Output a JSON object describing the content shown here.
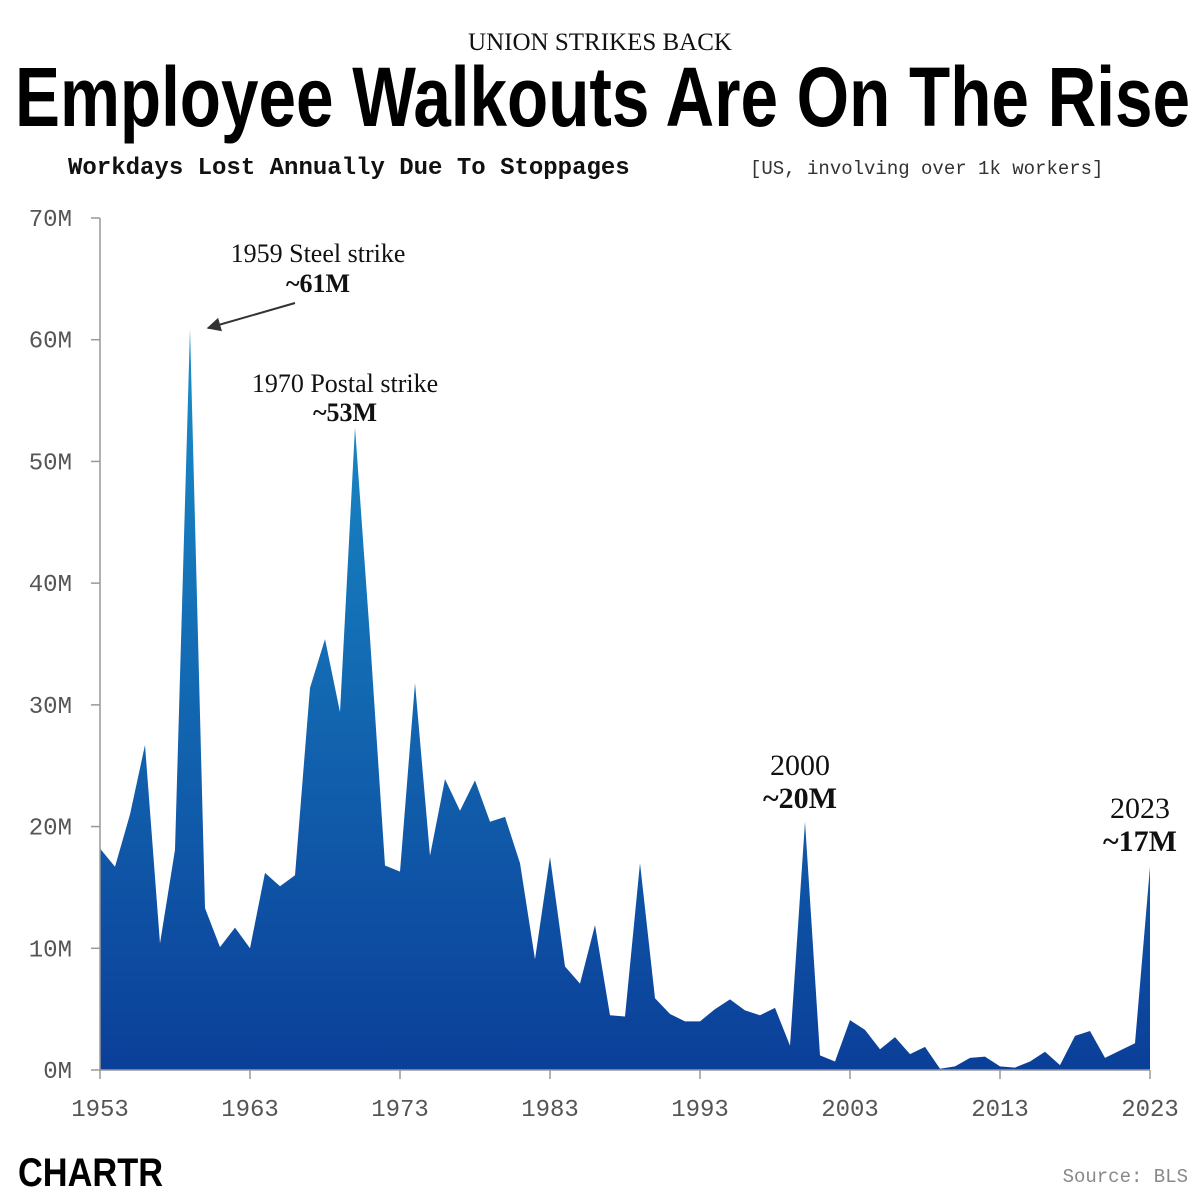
{
  "chart_data": {
    "type": "area",
    "kicker": "UNION STRIKES BACK",
    "title": "Employee Walkouts Are On The Rise",
    "subtitle": "Workdays Lost Annually Due To Stoppages",
    "subtitle_note": "[US, involving over 1k workers]",
    "source": "Source: BLS",
    "brand": "CHARTR",
    "x": [
      1953,
      1954,
      1955,
      1956,
      1957,
      1958,
      1959,
      1960,
      1961,
      1962,
      1963,
      1964,
      1965,
      1966,
      1967,
      1968,
      1969,
      1970,
      1971,
      1972,
      1973,
      1974,
      1975,
      1976,
      1977,
      1978,
      1979,
      1980,
      1981,
      1982,
      1983,
      1984,
      1985,
      1986,
      1987,
      1988,
      1989,
      1990,
      1991,
      1992,
      1993,
      1994,
      1995,
      1996,
      1997,
      1998,
      1999,
      2000,
      2001,
      2002,
      2003,
      2004,
      2005,
      2006,
      2007,
      2008,
      2009,
      2010,
      2011,
      2012,
      2013,
      2014,
      2015,
      2016,
      2017,
      2018,
      2019,
      2020,
      2021,
      2022,
      2023
    ],
    "values": [
      18.2,
      16.7,
      21,
      26.7,
      10.4,
      18.1,
      60.9,
      13.3,
      10.1,
      11.7,
      10.0,
      16.2,
      15.1,
      16.0,
      31.4,
      35.4,
      29.4,
      52.8,
      35.5,
      16.8,
      16.3,
      31.8,
      17.6,
      23.9,
      21.3,
      23.8,
      20.4,
      20.8,
      17.0,
      9.1,
      17.5,
      8.5,
      7.1,
      11.9,
      4.5,
      4.4,
      17.0,
      5.9,
      4.6,
      4.0,
      4.0,
      5.0,
      5.8,
      4.9,
      4.5,
      5.1,
      2.0,
      20.4,
      1.2,
      0.7,
      4.1,
      3.3,
      1.7,
      2.7,
      1.3,
      1.9,
      0.1,
      0.3,
      1.0,
      1.1,
      0.3,
      0.2,
      0.7,
      1.5,
      0.4,
      2.8,
      3.2,
      1.0,
      1.6,
      2.2,
      16.7
    ],
    "gradient": [
      "#1a8fc9",
      "#0b3f99"
    ],
    "xlim": [
      1953,
      2023
    ],
    "xticks": [
      1953,
      1963,
      1973,
      1983,
      1993,
      2003,
      2013,
      2023
    ],
    "ylim": [
      0,
      70
    ],
    "yticks": [
      {
        "value": 0,
        "label": "0M"
      },
      {
        "value": 10,
        "label": "10M"
      },
      {
        "value": 20,
        "label": "20M"
      },
      {
        "value": 30,
        "label": "30M"
      },
      {
        "value": 40,
        "label": "40M"
      },
      {
        "value": 50,
        "label": "50M"
      },
      {
        "value": 60,
        "label": "60M"
      },
      {
        "value": 70,
        "label": "70M"
      }
    ],
    "annotations": [
      {
        "text": "1959 Steel strike",
        "value_label": "~61M"
      },
      {
        "text": "1970 Postal strike",
        "value_label": "~53M"
      },
      {
        "text": "2000",
        "value_label": "~20M"
      },
      {
        "text": "2023",
        "value_label": "~17M"
      }
    ]
  }
}
